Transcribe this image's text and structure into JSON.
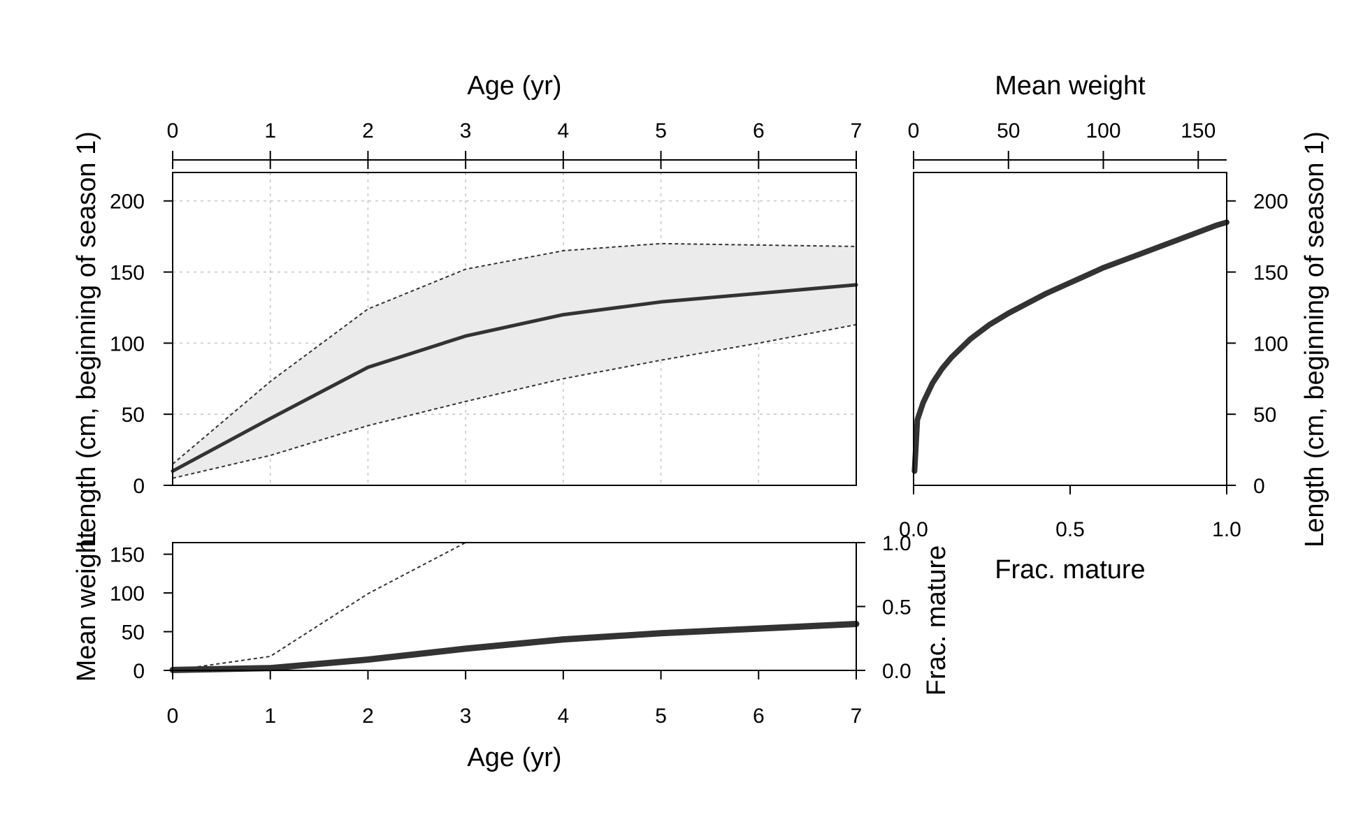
{
  "chart_data": [
    {
      "id": "length-at-age",
      "type": "area",
      "xlabel": "Age (yr)",
      "ylabel": "Length (cm, beginning of season 1)",
      "xlim": [
        0,
        7
      ],
      "ylim": [
        0,
        220
      ],
      "x_ticks": [
        0,
        1,
        2,
        3,
        4,
        5,
        6,
        7
      ],
      "y_ticks": [
        0,
        50,
        100,
        150,
        200
      ],
      "grid": true,
      "x": [
        0,
        1,
        2,
        3,
        4,
        5,
        6,
        7
      ],
      "series": [
        {
          "role": "mean",
          "values": [
            10,
            47,
            83,
            105,
            120,
            129,
            135,
            141
          ]
        },
        {
          "role": "upper",
          "values": [
            15,
            73,
            124,
            152,
            165,
            170,
            169,
            168
          ]
        },
        {
          "role": "lower",
          "values": [
            5,
            21,
            42,
            59,
            75,
            88,
            100,
            113
          ]
        }
      ]
    },
    {
      "id": "weight-maturity-at-age",
      "type": "line",
      "xlabel": "Age (yr)",
      "ylabel": "Mean weight",
      "y2label": "Frac. mature",
      "xlim": [
        0,
        7
      ],
      "ylim": [
        0,
        165
      ],
      "y2lim": [
        0,
        1.0
      ],
      "x_ticks": [
        0,
        1,
        2,
        3,
        4,
        5,
        6,
        7
      ],
      "y_ticks": [
        0,
        50,
        100,
        150
      ],
      "y2_ticks": [
        "0.0",
        "0.5",
        "1.0"
      ],
      "x": [
        0,
        1,
        2,
        3,
        4,
        5,
        6,
        7
      ],
      "series": [
        {
          "role": "mean-weight",
          "values": [
            0.5,
            3,
            14,
            28,
            40,
            48,
            54,
            60
          ]
        },
        {
          "role": "frac-mature",
          "axis": "y2",
          "x": [
            0,
            1,
            2,
            3,
            3.5
          ],
          "values": [
            0,
            0.11,
            0.6,
            1.0,
            1.0
          ]
        }
      ]
    },
    {
      "id": "length-weight-maturity",
      "type": "line",
      "xlabel": "Frac. mature",
      "x2label": "Mean weight",
      "ylabel": "Length (cm, beginning of season 1)",
      "xlim": [
        0,
        1.0
      ],
      "x2lim": [
        0,
        165
      ],
      "ylim": [
        0,
        220
      ],
      "x_ticks": [
        "0.0",
        "0.5",
        "1.0"
      ],
      "x2_ticks": [
        0,
        50,
        100,
        150
      ],
      "y_ticks": [
        0,
        50,
        100,
        150,
        200
      ],
      "series": [
        {
          "role": "length-vs-weight",
          "x": [
            0.5,
            2,
            5,
            10,
            15,
            20,
            30,
            40,
            50,
            60,
            70,
            80,
            90,
            100,
            110,
            120,
            130,
            140,
            150,
            160,
            165
          ],
          "values": [
            10,
            46,
            58,
            72,
            82,
            90,
            103,
            113,
            121,
            128,
            135,
            141,
            147,
            153,
            158,
            163,
            168,
            173,
            178,
            183,
            185
          ]
        }
      ]
    }
  ]
}
